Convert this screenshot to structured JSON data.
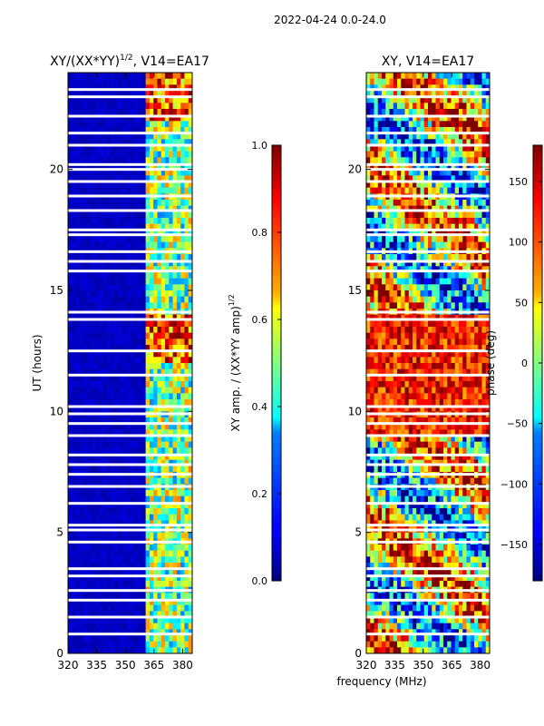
{
  "figure_title": "2022-04-24 0.0-24.0",
  "shared_xlabel": "frequency (MHz)",
  "chart_data": [
    {
      "type": "heatmap",
      "title_main": "XY/(XX*YY)",
      "title_sup": "1/2",
      "title_rest": ", V14=EA17",
      "ylabel": "UT (hours)",
      "xlim": [
        320,
        385
      ],
      "ylim": [
        0,
        24
      ],
      "x_ticks": [
        320,
        335,
        350,
        365,
        380
      ],
      "y_ticks": [
        0,
        5,
        10,
        15,
        20
      ],
      "colorbar": {
        "label_main": "XY amp. / (XX*YY amp)",
        "label_sup": "1/2",
        "range": [
          0.0,
          1.0
        ],
        "ticks": [
          0.0,
          0.2,
          0.4,
          0.6,
          0.8,
          1.0
        ],
        "tick_labels": [
          "0.0",
          "0.2",
          "0.4",
          "0.6",
          "0.8",
          "1.0"
        ]
      },
      "colormap": "jet",
      "data_description_note": "dark blue (~0) for 320-361 MHz; elevated amplitude bands (0.3-1.0) at ~361-383 MHz",
      "flagged_ut_hours": [
        0.8,
        1.5,
        2.2,
        2.6,
        3.2,
        3.5,
        4.6,
        5.1,
        5.3,
        6.2,
        6.9,
        7.4,
        7.8,
        8.2,
        9.0,
        9.5,
        9.9,
        10.2,
        11.5,
        12.5,
        13.8,
        14.1,
        15.8,
        16.2,
        16.6,
        17.3,
        17.5,
        18.3,
        18.9,
        19.5,
        20.0,
        20.2,
        21.0,
        21.5,
        22.2,
        23.0,
        23.3
      ]
    },
    {
      "type": "heatmap",
      "title": "XY, V14=EA17",
      "ylabel": "",
      "xlim": [
        320,
        385
      ],
      "ylim": [
        0,
        24
      ],
      "x_ticks": [
        320,
        335,
        350,
        365,
        380
      ],
      "y_ticks": [
        0,
        5,
        10,
        15,
        20
      ],
      "colorbar": {
        "label": "phase (deg)",
        "range": [
          -180,
          180
        ],
        "ticks": [
          -150,
          -100,
          -50,
          0,
          50,
          100,
          150
        ],
        "tick_labels": [
          "−150",
          "−100",
          "−50",
          "0",
          "50",
          "100",
          "150"
        ]
      },
      "colormap": "jet",
      "flagged_ut_hours": [
        0.8,
        1.5,
        2.2,
        2.6,
        3.2,
        3.5,
        4.6,
        5.1,
        5.3,
        6.2,
        6.9,
        7.4,
        7.8,
        8.2,
        9.0,
        9.5,
        9.9,
        10.2,
        11.5,
        12.5,
        13.8,
        14.1,
        15.8,
        16.2,
        16.6,
        17.3,
        17.5,
        18.3,
        18.9,
        19.5,
        20.0,
        20.2,
        21.0,
        21.5,
        22.2,
        23.0,
        23.3
      ]
    }
  ]
}
